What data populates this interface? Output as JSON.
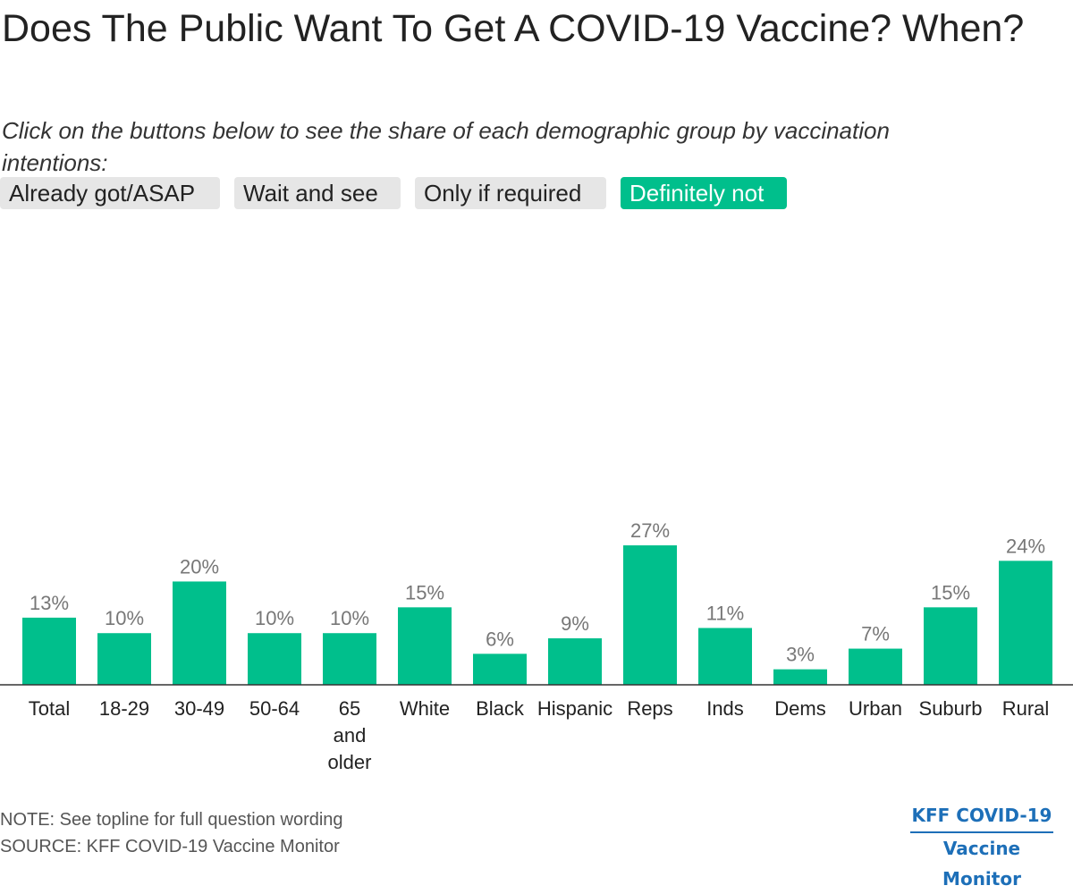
{
  "title": "Does The Public Want To Get A COVID-19 Vaccine? When?",
  "subtitle": "Click on the buttons below to see the share of each demographic group by vaccination intentions:",
  "buttons": [
    {
      "label": "Already got/ASAP",
      "active": false
    },
    {
      "label": "Wait and see",
      "active": false
    },
    {
      "label": "Only if required",
      "active": false
    },
    {
      "label": "Definitely not",
      "active": true
    }
  ],
  "colors": {
    "accent": "#00bf8c",
    "button_bg": "#e6e6e6",
    "value_label": "#777777",
    "logo": "#1d6fb8"
  },
  "chart_data": {
    "type": "bar",
    "categories": [
      "Total",
      "18-29",
      "30-49",
      "50-64",
      "65 and older",
      "White",
      "Black",
      "Hispanic",
      "Reps",
      "Inds",
      "Dems",
      "Urban",
      "Suburb",
      "Rural"
    ],
    "values": [
      13,
      10,
      20,
      10,
      10,
      15,
      6,
      9,
      27,
      11,
      3,
      7,
      15,
      24
    ],
    "data_labels": [
      "13%",
      "10%",
      "20%",
      "10%",
      "10%",
      "15%",
      "6%",
      "9%",
      "27%",
      "11%",
      "3%",
      "7%",
      "15%",
      "24%"
    ],
    "ylim": [
      0,
      27
    ],
    "grid": false
  },
  "footer": {
    "note": "NOTE: See topline for full question wording",
    "source": "SOURCE: KFF COVID-19 Vaccine Monitor"
  },
  "logo": {
    "line1": "KFF COVID-19",
    "line2": "Vaccine Monitor"
  }
}
